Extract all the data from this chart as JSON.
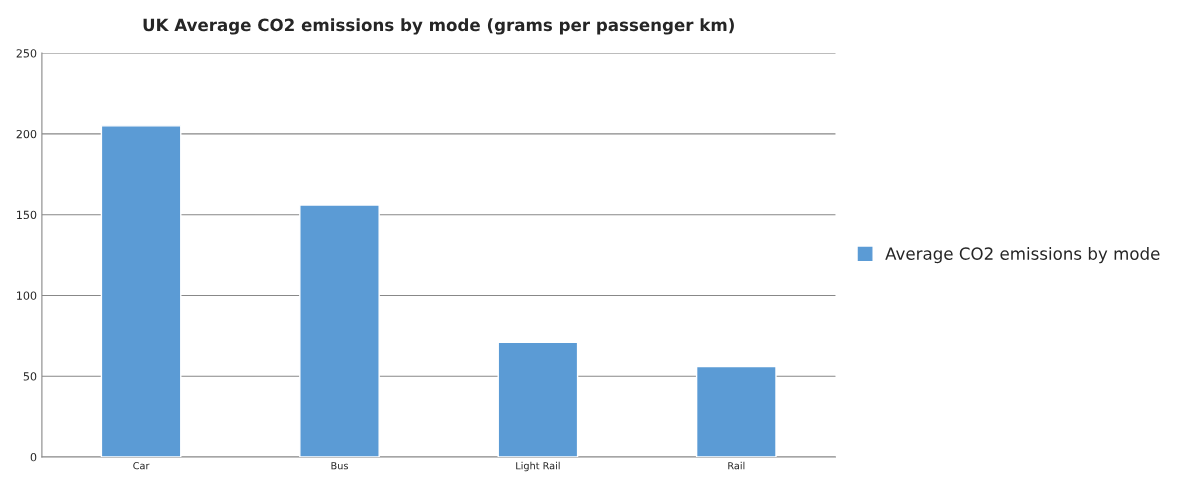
{
  "chart_data": {
    "type": "bar",
    "title": "UK Average CO2 emissions by mode (grams per passenger km)",
    "categories": [
      "Car",
      "Bus",
      "Light Rail",
      "Rail"
    ],
    "series": [
      {
        "name": "Average CO2 emissions by mode",
        "color": "#5b9bd5",
        "values": [
          205,
          156,
          71,
          56
        ]
      }
    ],
    "ylim": [
      0,
      250
    ],
    "yticks": [
      0,
      50,
      100,
      150,
      200,
      250
    ],
    "grid": "y",
    "legend": "right"
  }
}
